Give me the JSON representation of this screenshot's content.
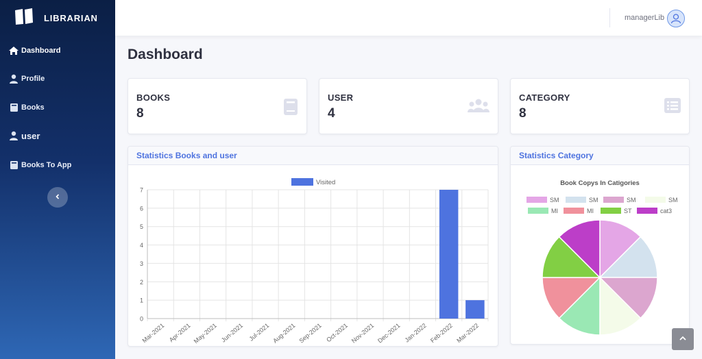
{
  "app": {
    "brand": "LIBRARIAN"
  },
  "sidebar": {
    "items": [
      {
        "label": "Dashboard",
        "icon": "home-icon",
        "active": true
      },
      {
        "label": "Profile",
        "icon": "user-icon"
      },
      {
        "label": "Books",
        "icon": "book-icon"
      },
      {
        "label": "user",
        "icon": "user-icon"
      },
      {
        "label": "Books To App",
        "icon": "book-icon"
      }
    ],
    "toggle_icon": "chevron-left-icon"
  },
  "topbar": {
    "username": "managerLib",
    "avatar_icon": "user-avatar-icon"
  },
  "page": {
    "title": "Dashboard"
  },
  "stats": [
    {
      "label": "BOOKS",
      "value": "8",
      "icon": "book-icon"
    },
    {
      "label": "USER",
      "value": "4",
      "icon": "users-icon"
    },
    {
      "label": "CATEGORY",
      "value": "8",
      "icon": "list-icon"
    }
  ],
  "panels": {
    "books_user": {
      "title": "Statistics Books and user"
    },
    "category": {
      "title": "Statistics Category"
    }
  },
  "colors": {
    "accent": "#4e73df",
    "bar": "#4e73df"
  },
  "chart_data": [
    {
      "type": "bar",
      "title": "",
      "xlabel": "",
      "ylabel": "",
      "categories": [
        "Mar-2021",
        "Apr-2021",
        "May-2021",
        "Jun-2021",
        "Jul-2021",
        "Aug-2021",
        "Sep-2021",
        "Oct-2021",
        "Nov-2021",
        "Dec-2021",
        "Jan-2022",
        "Feb-2022",
        "Mar-2022"
      ],
      "series": [
        {
          "name": "Visited",
          "values": [
            0,
            0,
            0,
            0,
            0,
            0,
            0,
            0,
            0,
            0,
            0,
            7,
            1
          ],
          "color": "#4e73df"
        }
      ],
      "ylim": [
        0,
        7
      ],
      "yticks": [
        0,
        1,
        2,
        3,
        4,
        5,
        6,
        7
      ],
      "legend": "top",
      "grid": true
    },
    {
      "type": "pie",
      "title": "Book Copys In Catigories",
      "labels": [
        "SM",
        "SM",
        "SM",
        "SM",
        "MI",
        "MI",
        "ST",
        "cat3"
      ],
      "values": [
        1,
        1,
        1,
        1,
        1,
        1,
        1,
        1
      ],
      "colors": [
        "#e4a6e6",
        "#d3e2ee",
        "#dca6cf",
        "#f4fbe9",
        "#9ae8b4",
        "#f0919c",
        "#82cf44",
        "#bc3ec8"
      ],
      "legend": "top"
    }
  ]
}
